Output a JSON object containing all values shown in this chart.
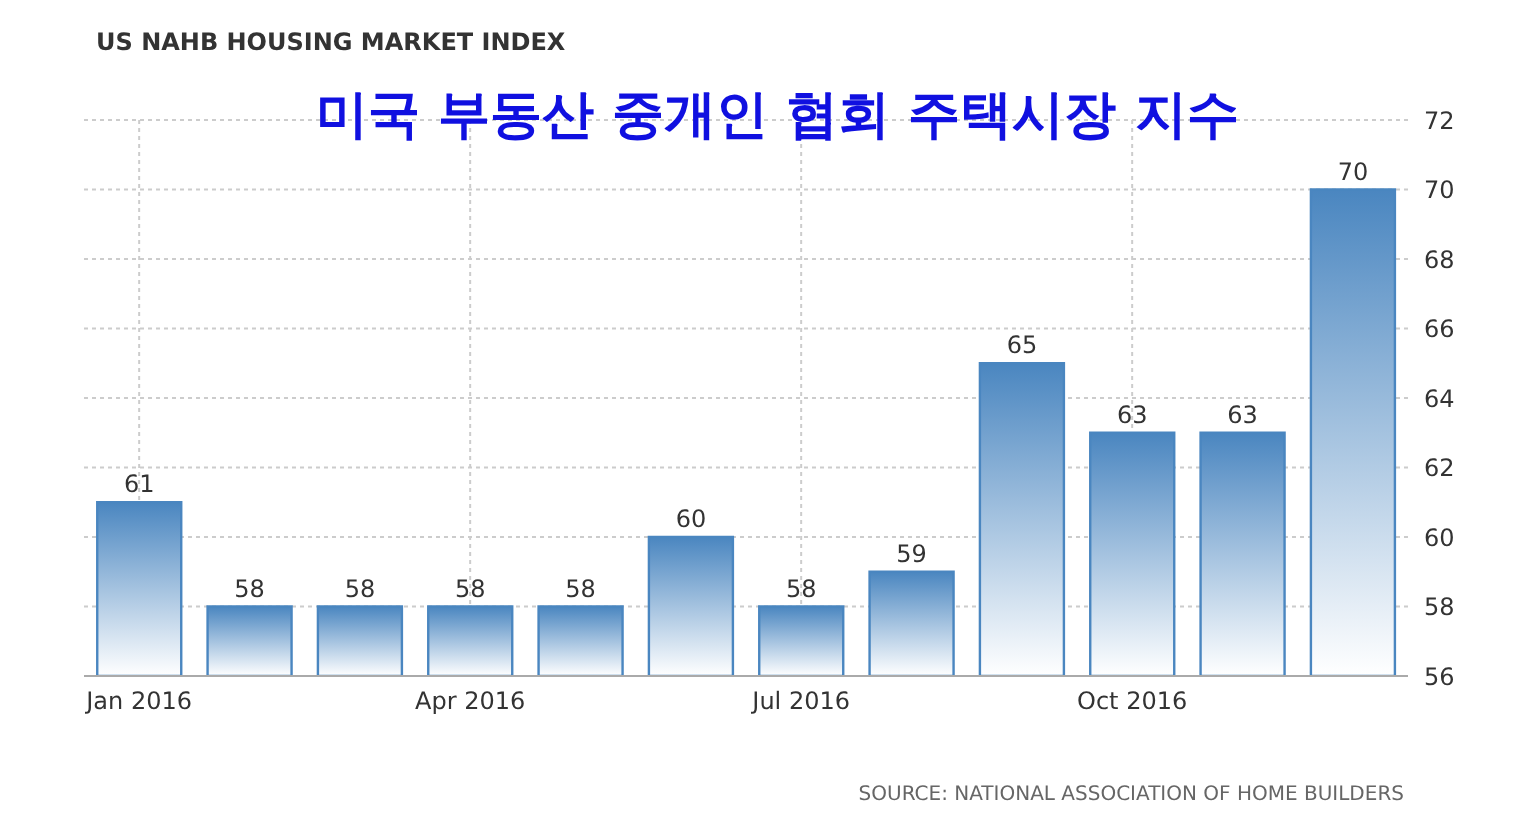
{
  "chart_data": {
    "type": "bar",
    "title": "US NAHB HOUSING MARKET INDEX",
    "subtitle": "미국 부동산 중개인 협회 주택시장 지수",
    "categories": [
      "Jan 2016",
      null,
      null,
      "Apr 2016",
      null,
      null,
      "Jul 2016",
      null,
      null,
      "Oct 2016",
      null,
      null
    ],
    "values": [
      61,
      58,
      58,
      58,
      58,
      60,
      58,
      59,
      65,
      63,
      63,
      70
    ],
    "color": "#4a86c0",
    "ylim": [
      56,
      72
    ],
    "yticks": [
      56,
      58,
      60,
      62,
      64,
      66,
      68,
      70,
      72
    ],
    "grid": true,
    "data_labels": true,
    "annotations": [
      "SOURCE: NATIONAL ASSOCIATION OF HOME BUILDERS"
    ]
  }
}
